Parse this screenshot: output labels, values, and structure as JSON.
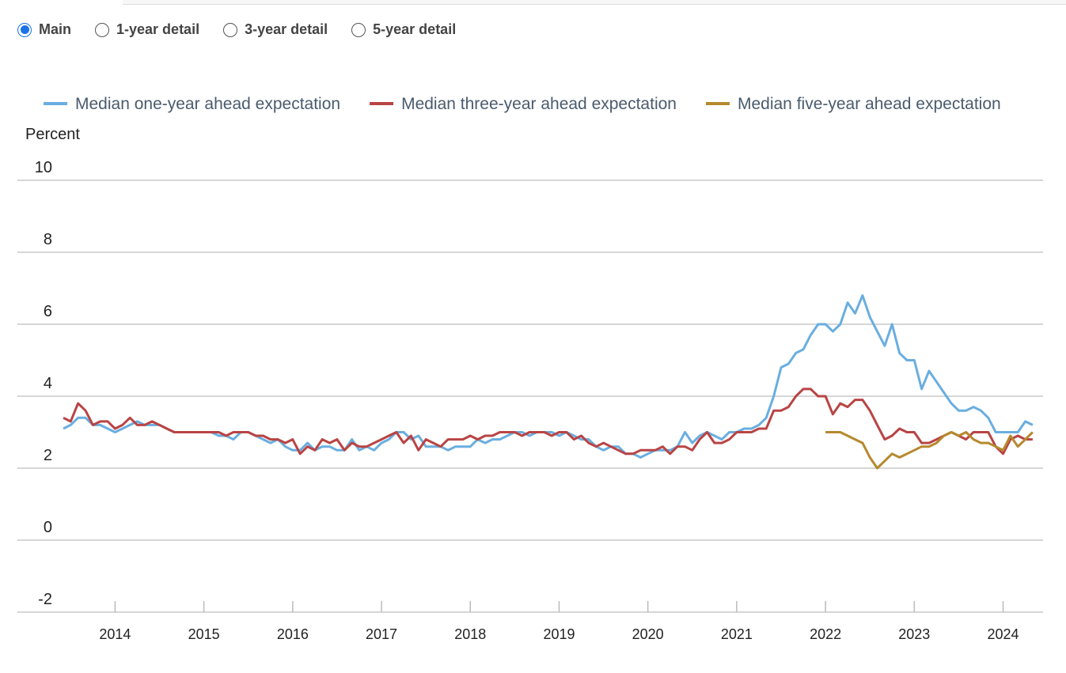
{
  "controls": {
    "options": [
      "Main",
      "1-year detail",
      "3-year detail",
      "5-year detail"
    ],
    "selected": 0
  },
  "chart_data": {
    "type": "line",
    "y_label": "Percent",
    "xlim": [
      2012.9,
      2024.45
    ],
    "xticks": [
      2014,
      2015,
      2016,
      2017,
      2018,
      2019,
      2020,
      2021,
      2022,
      2023,
      2024
    ],
    "ylim": [
      -2,
      10
    ],
    "yticks": [
      -2,
      0,
      2,
      4,
      6,
      8,
      10
    ],
    "grid": true,
    "legend": "top",
    "x": [
      2013.417,
      2013.5,
      2013.583,
      2013.667,
      2013.75,
      2013.833,
      2013.917,
      2014,
      2014.083,
      2014.167,
      2014.25,
      2014.333,
      2014.417,
      2014.5,
      2014.583,
      2014.667,
      2014.75,
      2014.833,
      2014.917,
      2015,
      2015.083,
      2015.167,
      2015.25,
      2015.333,
      2015.417,
      2015.5,
      2015.583,
      2015.667,
      2015.75,
      2015.833,
      2015.917,
      2016,
      2016.083,
      2016.167,
      2016.25,
      2016.333,
      2016.417,
      2016.5,
      2016.583,
      2016.667,
      2016.75,
      2016.833,
      2016.917,
      2017,
      2017.083,
      2017.167,
      2017.25,
      2017.333,
      2017.417,
      2017.5,
      2017.583,
      2017.667,
      2017.75,
      2017.833,
      2017.917,
      2018,
      2018.083,
      2018.167,
      2018.25,
      2018.333,
      2018.417,
      2018.5,
      2018.583,
      2018.667,
      2018.75,
      2018.833,
      2018.917,
      2019,
      2019.083,
      2019.167,
      2019.25,
      2019.333,
      2019.417,
      2019.5,
      2019.583,
      2019.667,
      2019.75,
      2019.833,
      2019.917,
      2020,
      2020.083,
      2020.167,
      2020.25,
      2020.333,
      2020.417,
      2020.5,
      2020.583,
      2020.667,
      2020.75,
      2020.833,
      2020.917,
      2021,
      2021.083,
      2021.167,
      2021.25,
      2021.333,
      2021.417,
      2021.5,
      2021.583,
      2021.667,
      2021.75,
      2021.833,
      2021.917,
      2022,
      2022.083,
      2022.167,
      2022.25,
      2022.333,
      2022.417,
      2022.5,
      2022.583,
      2022.667,
      2022.75,
      2022.833,
      2022.917,
      2023,
      2023.083,
      2023.167,
      2023.25,
      2023.333,
      2023.417,
      2023.5,
      2023.583,
      2023.667,
      2023.75,
      2023.833,
      2023.917,
      2024,
      2024.083,
      2024.167,
      2024.25,
      2024.333
    ],
    "series": [
      {
        "name": "Median one-year ahead expectation",
        "color": "#6aaee0",
        "values": [
          3.1,
          3.2,
          3.4,
          3.4,
          3.2,
          3.2,
          3.1,
          3.0,
          3.1,
          3.2,
          3.3,
          3.2,
          3.2,
          3.2,
          3.1,
          3.0,
          3.0,
          3.0,
          3.0,
          3.0,
          3.0,
          2.9,
          2.9,
          2.8,
          3.0,
          3.0,
          2.9,
          2.8,
          2.7,
          2.8,
          2.6,
          2.5,
          2.5,
          2.7,
          2.5,
          2.6,
          2.6,
          2.5,
          2.5,
          2.8,
          2.5,
          2.6,
          2.5,
          2.7,
          2.8,
          3.0,
          3.0,
          2.8,
          2.9,
          2.6,
          2.6,
          2.6,
          2.5,
          2.6,
          2.6,
          2.6,
          2.8,
          2.7,
          2.8,
          2.8,
          2.9,
          3.0,
          3.0,
          2.9,
          3.0,
          3.0,
          3.0,
          2.9,
          3.0,
          2.9,
          2.8,
          2.8,
          2.6,
          2.5,
          2.6,
          2.6,
          2.4,
          2.4,
          2.3,
          2.4,
          2.5,
          2.5,
          2.5,
          2.6,
          3.0,
          2.7,
          2.9,
          3.0,
          2.9,
          2.8,
          3.0,
          3.0,
          3.1,
          3.1,
          3.2,
          3.4,
          4.0,
          4.8,
          4.9,
          5.2,
          5.3,
          5.7,
          6.0,
          6.0,
          5.8,
          6.0,
          6.6,
          6.3,
          6.8,
          6.2,
          5.8,
          5.4,
          6.0,
          5.2,
          5.0,
          5.0,
          4.2,
          4.7,
          4.4,
          4.1,
          3.8,
          3.6,
          3.6,
          3.7,
          3.6,
          3.4,
          3.0,
          3.0,
          3.0,
          3.0,
          3.3,
          3.2
        ]
      },
      {
        "name": "Median three-year ahead expectation",
        "color": "#b94444",
        "values": [
          3.4,
          3.3,
          3.8,
          3.6,
          3.2,
          3.3,
          3.3,
          3.1,
          3.2,
          3.4,
          3.2,
          3.2,
          3.3,
          3.2,
          3.1,
          3.0,
          3.0,
          3.0,
          3.0,
          3.0,
          3.0,
          3.0,
          2.9,
          3.0,
          3.0,
          3.0,
          2.9,
          2.9,
          2.8,
          2.8,
          2.7,
          2.8,
          2.4,
          2.6,
          2.5,
          2.8,
          2.7,
          2.8,
          2.5,
          2.7,
          2.6,
          2.6,
          2.7,
          2.8,
          2.9,
          3.0,
          2.7,
          2.9,
          2.5,
          2.8,
          2.7,
          2.6,
          2.8,
          2.8,
          2.8,
          2.9,
          2.8,
          2.9,
          2.9,
          3.0,
          3.0,
          3.0,
          2.9,
          3.0,
          3.0,
          3.0,
          2.9,
          3.0,
          3.0,
          2.8,
          2.9,
          2.7,
          2.6,
          2.7,
          2.6,
          2.5,
          2.4,
          2.4,
          2.5,
          2.5,
          2.5,
          2.6,
          2.4,
          2.6,
          2.6,
          2.5,
          2.8,
          3.0,
          2.7,
          2.7,
          2.8,
          3.0,
          3.0,
          3.0,
          3.1,
          3.1,
          3.6,
          3.6,
          3.7,
          4.0,
          4.2,
          4.2,
          4.0,
          4.0,
          3.5,
          3.8,
          3.7,
          3.9,
          3.9,
          3.6,
          3.2,
          2.8,
          2.9,
          3.1,
          3.0,
          3.0,
          2.7,
          2.7,
          2.8,
          2.9,
          3.0,
          2.9,
          2.8,
          3.0,
          3.0,
          3.0,
          2.6,
          2.4,
          2.8,
          2.9,
          2.8,
          2.8
        ]
      },
      {
        "name": "Median five-year ahead expectation",
        "color": "#b5892e",
        "values": [
          null,
          null,
          null,
          null,
          null,
          null,
          null,
          null,
          null,
          null,
          null,
          null,
          null,
          null,
          null,
          null,
          null,
          null,
          null,
          null,
          null,
          null,
          null,
          null,
          null,
          null,
          null,
          null,
          null,
          null,
          null,
          null,
          null,
          null,
          null,
          null,
          null,
          null,
          null,
          null,
          null,
          null,
          null,
          null,
          null,
          null,
          null,
          null,
          null,
          null,
          null,
          null,
          null,
          null,
          null,
          null,
          null,
          null,
          null,
          null,
          null,
          null,
          null,
          null,
          null,
          null,
          null,
          null,
          null,
          null,
          null,
          null,
          null,
          null,
          null,
          null,
          null,
          null,
          null,
          null,
          null,
          null,
          null,
          null,
          null,
          null,
          null,
          null,
          null,
          null,
          null,
          null,
          null,
          null,
          null,
          null,
          null,
          null,
          null,
          null,
          null,
          null,
          null,
          3.0,
          3.0,
          3.0,
          2.9,
          2.8,
          2.7,
          2.3,
          2.0,
          2.2,
          2.4,
          2.3,
          2.4,
          2.5,
          2.6,
          2.6,
          2.7,
          2.9,
          3.0,
          2.9,
          3.0,
          2.8,
          2.7,
          2.7,
          2.6,
          2.5,
          2.9,
          2.6,
          2.8,
          3.0
        ]
      }
    ]
  }
}
